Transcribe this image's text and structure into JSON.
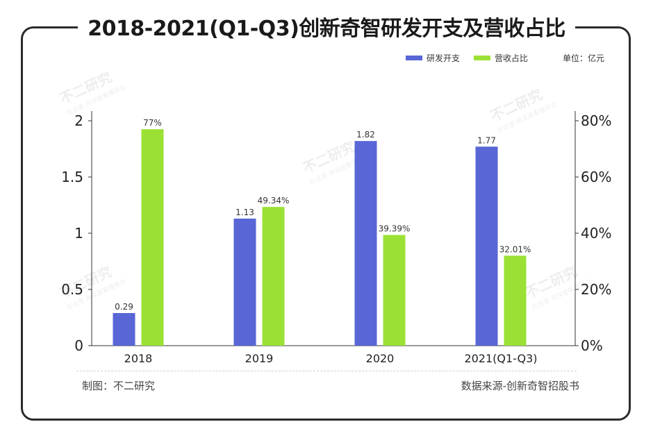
{
  "title": "2018-2021(Q1-Q3)创新奇智研发开支及营收占比",
  "unit_label": "单位：亿元",
  "watermark": {
    "brand": "不二研究",
    "tagline": "在这里 用深度看懂商业"
  },
  "footer": {
    "maker": "制图：不二研究",
    "source": "数据来源-创新奇智招股书"
  },
  "colors": {
    "rd": "#5866d6",
    "ratio": "#9be135"
  },
  "chart_data": {
    "type": "bar",
    "title": "2018-2021(Q1-Q3)创新奇智研发开支及营收占比",
    "categories": [
      "2018",
      "2019",
      "2020",
      "2021(Q1-Q3)"
    ],
    "series": [
      {
        "name": "研发开支",
        "axis": "left",
        "values": [
          0.29,
          1.13,
          1.82,
          1.77
        ],
        "labels": [
          "0.29",
          "1.13",
          "1.82",
          "1.77"
        ]
      },
      {
        "name": "营收占比",
        "axis": "right",
        "values": [
          77,
          49.34,
          39.39,
          32.01
        ],
        "labels": [
          "77%",
          "49.34%",
          "39.39%",
          "32.01%"
        ]
      }
    ],
    "y_left": {
      "range": [
        0,
        2
      ],
      "ticks": [
        "0",
        "0.5",
        "1",
        "1.5",
        "2"
      ],
      "tick_values": [
        0,
        0.5,
        1,
        1.5,
        2
      ]
    },
    "y_right": {
      "range": [
        0,
        80
      ],
      "ticks": [
        "0%",
        "20%",
        "40%",
        "60%",
        "80%"
      ],
      "tick_values": [
        0,
        20,
        40,
        60,
        80
      ]
    },
    "legend": "top-right",
    "grid": false
  }
}
